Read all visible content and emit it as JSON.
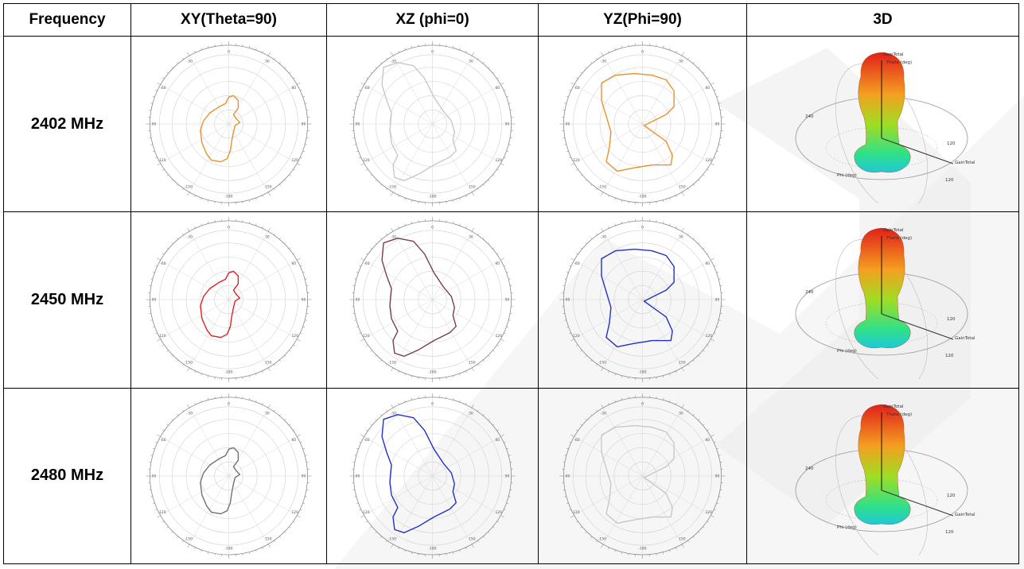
{
  "table": {
    "headers": [
      "Frequency",
      "XY(Theta=90)",
      "XZ (phi=0)",
      "YZ(Phi=90)",
      "3D"
    ],
    "rows": [
      {
        "frequency": "2402 MHz",
        "plots": [
          {
            "plane": "xy",
            "color": "#e8912c"
          },
          {
            "plane": "xz",
            "color": "#c8c8c8"
          },
          {
            "plane": "yz",
            "color": "#e8912c"
          }
        ]
      },
      {
        "frequency": "2450 MHz",
        "plots": [
          {
            "plane": "xy",
            "color": "#e02020"
          },
          {
            "plane": "xz",
            "color": "#7a3c52"
          },
          {
            "plane": "yz",
            "color": "#2030c8"
          }
        ]
      },
      {
        "frequency": "2480 MHz",
        "plots": [
          {
            "plane": "xy",
            "color": "#707070"
          },
          {
            "plane": "xz",
            "color": "#2030c8"
          },
          {
            "plane": "yz",
            "color": "#c8c8c8"
          }
        ]
      }
    ]
  },
  "polar_tick_labels": {
    "top": "0",
    "upper_left": "-30",
    "upper_right": "30",
    "left_upper": "-60",
    "right_upper": "60",
    "left": "-90",
    "right": "90",
    "left_lower": "-120",
    "right_lower": "120",
    "lower_left": "-150",
    "lower_right": "150",
    "bottom": "-180"
  },
  "radiation_3d": {
    "gain_label": "GainTotal",
    "theta_label": "Theta (deg)",
    "phi_label": "Phi (deg)",
    "tick_labels": [
      "240",
      "120",
      "120"
    ]
  }
}
